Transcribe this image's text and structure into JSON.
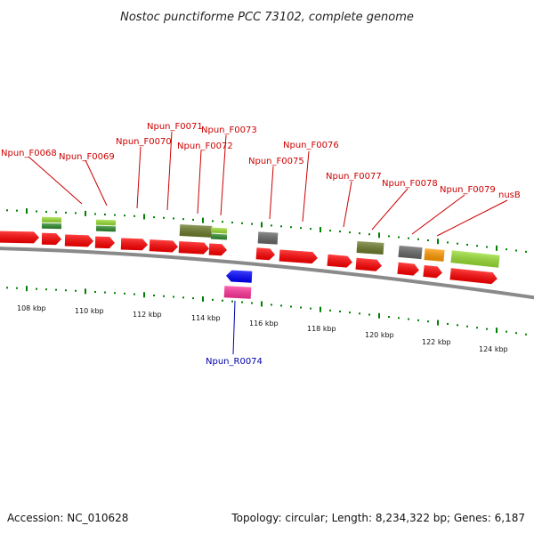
{
  "title": "Nostoc punctiforme PCC 73102, complete genome",
  "footer": {
    "accession": "Accession: NC_010628",
    "summary": "Topology: circular; Length: 8,234,322 bp; Genes: 6,187"
  },
  "colors": {
    "cds": "#ff0000",
    "rna": "#0000ff",
    "label_forward": "#cc0000",
    "label_reverse": "#0000aa",
    "backbone": "#808080",
    "tick": "#008000",
    "lime": "#99dd33",
    "olive": "#6b7a2a",
    "darkgray": "#666666",
    "orange": "#ff9900",
    "pink": "#ff3399",
    "darkgreen": "#2e8b2e"
  },
  "gene_labels": [
    {
      "key": "Npun_F0068",
      "text": "Npun_F0068"
    },
    {
      "key": "Npun_F0069",
      "text": "Npun_F0069"
    },
    {
      "key": "Npun_F0070",
      "text": "Npun_F0070"
    },
    {
      "key": "Npun_F0071",
      "text": "Npun_F0071"
    },
    {
      "key": "Npun_F0072",
      "text": "Npun_F0072"
    },
    {
      "key": "Npun_F0073",
      "text": "Npun_F0073"
    },
    {
      "key": "Npun_F0075",
      "text": "Npun_F0075"
    },
    {
      "key": "Npun_F0076",
      "text": "Npun_F0076"
    },
    {
      "key": "Npun_F0077",
      "text": "Npun_F0077"
    },
    {
      "key": "Npun_F0078",
      "text": "Npun_F0078"
    },
    {
      "key": "Npun_F0079",
      "text": "Npun_F0079"
    },
    {
      "key": "nusB",
      "text": "nusB"
    },
    {
      "key": "Npun_R0074",
      "text": "Npun_R0074"
    }
  ],
  "ticks": [
    "108 kbp",
    "110 kbp",
    "112 kbp",
    "114 kbp",
    "116 kbp",
    "118 kbp",
    "120 kbp",
    "122 kbp",
    "124 kbp"
  ]
}
